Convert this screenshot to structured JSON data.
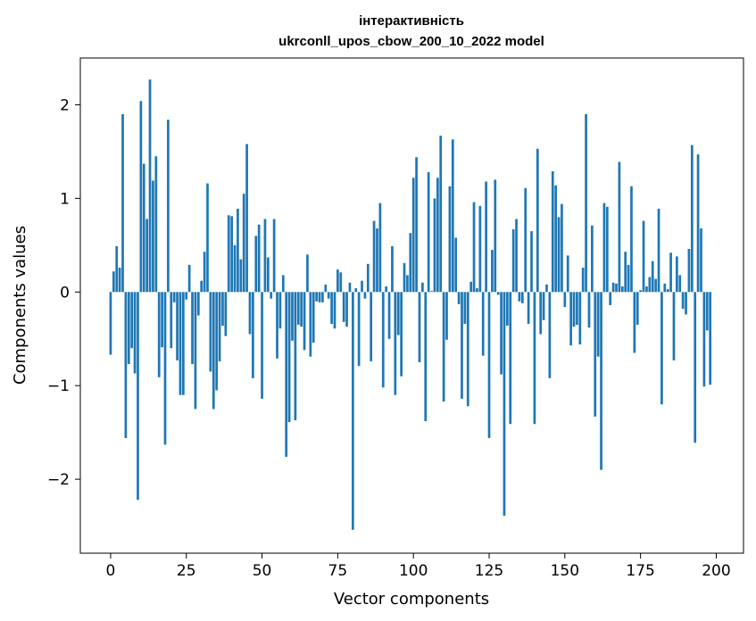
{
  "chart_data": {
    "type": "bar",
    "title": "інтерактивність",
    "subtitle": "ukrconll_upos_cbow_200_10_2022 model",
    "xlabel": "Vector components",
    "ylabel": "Components values",
    "xlim": [
      -10,
      209
    ],
    "ylim": [
      -2.79,
      2.5
    ],
    "xticks": [
      0,
      25,
      50,
      75,
      100,
      125,
      150,
      175,
      200
    ],
    "yticks": [
      -2,
      -1,
      0,
      1,
      2
    ],
    "ytick_labels": [
      "−2",
      "−1",
      "0",
      "1",
      "2"
    ],
    "grid": false,
    "bar_color": "#1f77b4",
    "values": [
      -0.67,
      0.22,
      0.49,
      0.26,
      1.9,
      -1.56,
      -0.77,
      -0.6,
      -0.87,
      -2.22,
      2.04,
      1.37,
      0.78,
      2.27,
      1.19,
      1.45,
      -0.91,
      -0.59,
      -1.63,
      1.84,
      -0.6,
      -0.11,
      -0.73,
      -1.1,
      -1.1,
      -0.08,
      0.29,
      -0.77,
      -1.25,
      -0.25,
      0.12,
      0.43,
      1.16,
      -0.85,
      -1.25,
      -1.05,
      -0.74,
      -0.36,
      -0.47,
      0.82,
      0.81,
      0.5,
      0.89,
      0.35,
      1.05,
      1.58,
      -0.45,
      -0.92,
      0.6,
      0.72,
      -1.14,
      0.78,
      0.37,
      -0.07,
      0.78,
      -0.71,
      -0.39,
      0.18,
      -1.76,
      -1.39,
      -0.52,
      -1.37,
      -0.35,
      -0.37,
      -0.62,
      0.4,
      -0.69,
      -0.54,
      -0.1,
      -0.11,
      -0.11,
      0.08,
      -0.07,
      -0.34,
      -0.39,
      0.24,
      0.21,
      -0.32,
      -0.37,
      0.1,
      -2.54,
      0.04,
      -0.79,
      0.12,
      -0.07,
      0.3,
      -0.74,
      0.76,
      0.68,
      0.95,
      -1.02,
      0.06,
      -0.5,
      0.49,
      -1.1,
      -0.46,
      -0.9,
      0.31,
      0.18,
      0.63,
      1.22,
      1.44,
      -0.75,
      0.1,
      -1.38,
      1.28,
      0.01,
      1.0,
      1.22,
      1.67,
      -1.17,
      -0.51,
      1.13,
      1.63,
      0.58,
      -0.13,
      -1.14,
      -0.34,
      -1.22,
      0.11,
      0.96,
      0.04,
      0.92,
      -0.68,
      1.18,
      -1.56,
      0.45,
      1.2,
      -0.03,
      -0.88,
      -2.39,
      -0.36,
      -1.41,
      0.67,
      0.78,
      -0.1,
      -0.12,
      1.11,
      -0.34,
      0.65,
      -1.41,
      1.53,
      -0.45,
      -0.3,
      0.08,
      -0.92,
      1.29,
      1.14,
      0.8,
      0.94,
      -0.16,
      0.39,
      -0.57,
      -0.37,
      -0.35,
      -0.56,
      0.26,
      1.9,
      -0.38,
      0.71,
      -1.33,
      -0.69,
      -1.9,
      0.95,
      0.91,
      -0.14,
      0.1,
      0.09,
      1.39,
      0.06,
      0.43,
      0.29,
      1.13,
      -0.65,
      -0.35,
      0.02,
      0.76,
      0.06,
      0.16,
      0.33,
      0.14,
      0.89,
      -1.2,
      0.09,
      0.03,
      0.42,
      -0.73,
      0.38,
      0.18,
      -0.18,
      -0.24,
      0.46,
      1.57,
      -1.61,
      1.47,
      0.68,
      -1.01,
      -0.41,
      -0.99
    ]
  }
}
